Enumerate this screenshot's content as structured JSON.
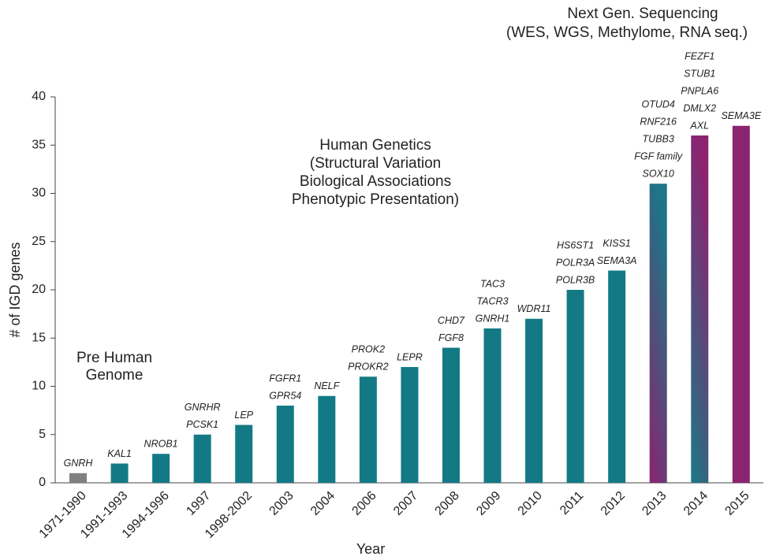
{
  "chart_data": {
    "type": "bar",
    "xlabel": "Year",
    "ylabel": "# of IGD genes",
    "categories": [
      "1971-1990",
      "1991-1993",
      "1994-1996",
      "1997",
      "1998-2002",
      "2003",
      "2004",
      "2006",
      "2007",
      "2008",
      "2009",
      "2010",
      "2011",
      "2012",
      "2013",
      "2014",
      "2015"
    ],
    "values": [
      1,
      2,
      3,
      5,
      6,
      8,
      9,
      11,
      12,
      14,
      16,
      17,
      20,
      22,
      31,
      36,
      37
    ],
    "colors": [
      "#808080",
      "#137a85",
      "#137a85",
      "#137a85",
      "#137a85",
      "#137a85",
      "#137a85",
      "#137a85",
      "#137a85",
      "#137a85",
      "#137a85",
      "#137a85",
      "#137a85",
      "#137a85",
      [
        "#8b2370",
        "#1f7485"
      ],
      [
        "#1a7a86",
        "#8b2370"
      ],
      "#8b2370"
    ],
    "gene_labels": [
      [
        {
          "text": "GNRH",
          "color": "#808080"
        }
      ],
      [
        {
          "text": "KAL1",
          "color": "#137a85"
        }
      ],
      [
        {
          "text": "NROB1",
          "color": "#137a85"
        }
      ],
      [
        {
          "text": "GNRHR",
          "color": "#137a85"
        },
        {
          "text": "PCSK1",
          "color": "#137a85"
        }
      ],
      [
        {
          "text": "LEP",
          "color": "#137a85"
        }
      ],
      [
        {
          "text": "FGFR1",
          "color": "#137a85"
        },
        {
          "text": "GPR54",
          "color": "#137a85"
        }
      ],
      [
        {
          "text": "NELF",
          "color": "#137a85"
        }
      ],
      [
        {
          "text": "PROK2",
          "color": "#137a85"
        },
        {
          "text": "PROKR2",
          "color": "#137a85"
        }
      ],
      [
        {
          "text": "LEPR",
          "color": "#137a85"
        }
      ],
      [
        {
          "text": "CHD7",
          "color": "#137a85"
        },
        {
          "text": "FGF8",
          "color": "#137a85"
        }
      ],
      [
        {
          "text": "TAC3",
          "color": "#137a85"
        },
        {
          "text": "TACR3",
          "color": "#137a85"
        },
        {
          "text": "GNRH1",
          "color": "#137a85"
        }
      ],
      [
        {
          "text": "WDR11",
          "color": "#137a85"
        }
      ],
      [
        {
          "text": "HS6ST1",
          "color": "#137a85"
        },
        {
          "text": "POLR3A",
          "color": "#137a85"
        },
        {
          "text": "POLR3B",
          "color": "#137a85"
        }
      ],
      [
        {
          "text": "KISS1",
          "color": "#137a85"
        },
        {
          "text": "SEMA3A",
          "color": "#137a85"
        }
      ],
      [
        {
          "text": "OTUD4",
          "color": "#8b2370"
        },
        {
          "text": "RNF216",
          "color": "#8b2370"
        },
        {
          "text": "TUBB3",
          "color": "#137a85"
        },
        {
          "text": "FGF family",
          "color": "#137a85"
        },
        {
          "text": "SOX10",
          "color": "#137a85"
        }
      ],
      [
        {
          "text": "FEZF1",
          "color": "#8b2370"
        },
        {
          "text": "STUB1",
          "color": "#8b2370"
        },
        {
          "text": "PNPLA6",
          "color": "#8b2370"
        },
        {
          "text": "DMLX2",
          "color": "#8b2370"
        },
        {
          "text": "AXL",
          "color": "#137a85"
        }
      ],
      [
        {
          "text": "SEMA3E",
          "color": "#8b2370"
        }
      ]
    ],
    "annotations": [
      {
        "lines": [
          "Pre Human",
          "Genome"
        ],
        "color": "#808080"
      },
      {
        "lines": [
          "Human Genetics",
          "(Structural Variation",
          "Biological Associations",
          "Phenotypic Presentation)"
        ],
        "color": "#137a85"
      },
      {
        "lines": [
          "Next Gen. Sequencing",
          "(WES, WGS, Methylome, RNA seq.)"
        ],
        "color": "#8b2370"
      }
    ],
    "ylim": [
      0,
      40
    ],
    "yticks": [
      0,
      5,
      10,
      15,
      20,
      25,
      30,
      35,
      40
    ],
    "grid": false
  }
}
